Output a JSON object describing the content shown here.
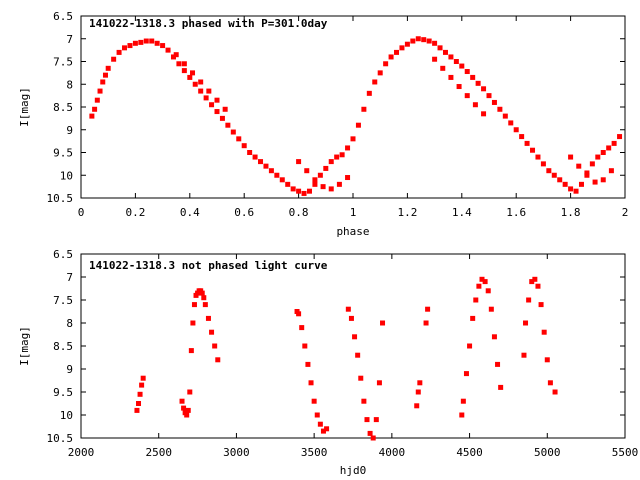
{
  "chart_data": [
    {
      "type": "scatter",
      "title": "141022-1318.3 phased with P=301.0day",
      "xlabel": "phase",
      "ylabel": "I[mag]",
      "xlim": [
        0,
        2
      ],
      "ylim": [
        6.5,
        10.5
      ],
      "y_inverted": true,
      "xticks": [
        "0",
        "0.2",
        "0.4",
        "0.6",
        "0.8",
        "1",
        "1.2",
        "1.4",
        "1.6",
        "1.8",
        "2"
      ],
      "yticks": [
        "6.5",
        "7",
        "7.5",
        "8",
        "8.5",
        "9",
        "9.5",
        "10",
        "10.5"
      ],
      "point_color": "#ff0000",
      "grid": false,
      "legend": "none",
      "x": [
        0.04,
        0.05,
        0.06,
        0.07,
        0.08,
        0.09,
        0.1,
        0.12,
        0.14,
        0.16,
        0.18,
        0.2,
        0.22,
        0.24,
        0.26,
        0.28,
        0.3,
        0.32,
        0.34,
        0.36,
        0.38,
        0.4,
        0.42,
        0.44,
        0.46,
        0.48,
        0.5,
        0.52,
        0.54,
        0.56,
        0.58,
        0.6,
        0.62,
        0.64,
        0.66,
        0.68,
        0.7,
        0.72,
        0.74,
        0.76,
        0.78,
        0.8,
        0.82,
        0.84,
        0.86,
        0.88,
        0.9,
        0.92,
        0.94,
        0.96,
        0.98,
        1.0,
        1.02,
        1.04,
        1.06,
        1.08,
        1.1,
        1.12,
        1.14,
        1.16,
        1.18,
        1.2,
        1.22,
        1.24,
        1.26,
        1.28,
        1.3,
        1.32,
        1.34,
        1.36,
        1.38,
        1.4,
        1.42,
        1.44,
        1.46,
        1.48,
        1.5,
        1.52,
        1.54,
        1.56,
        1.58,
        1.6,
        1.62,
        1.64,
        1.66,
        1.68,
        1.7,
        1.72,
        1.74,
        1.76,
        1.78,
        1.8,
        1.82,
        1.84,
        1.86,
        1.88,
        1.9,
        1.92,
        1.94,
        1.96,
        1.98,
        0.35,
        0.38,
        0.41,
        0.44,
        0.47,
        0.5,
        0.53,
        0.8,
        0.83,
        0.86,
        0.89,
        0.92,
        0.95,
        0.98,
        1.3,
        1.33,
        1.36,
        1.39,
        1.42,
        1.45,
        1.48,
        1.8,
        1.83,
        1.86,
        1.89,
        1.92,
        1.95
      ],
      "y": [
        8.7,
        8.55,
        8.35,
        8.15,
        7.95,
        7.8,
        7.65,
        7.45,
        7.3,
        7.2,
        7.15,
        7.1,
        7.08,
        7.05,
        7.05,
        7.1,
        7.15,
        7.25,
        7.4,
        7.55,
        7.7,
        7.85,
        8.0,
        8.15,
        8.3,
        8.45,
        8.6,
        8.75,
        8.9,
        9.05,
        9.2,
        9.35,
        9.5,
        9.6,
        9.7,
        9.8,
        9.9,
        10.0,
        10.1,
        10.2,
        10.3,
        10.35,
        10.4,
        10.35,
        10.2,
        10.0,
        9.85,
        9.7,
        9.6,
        9.55,
        9.4,
        9.2,
        8.9,
        8.55,
        8.2,
        7.95,
        7.75,
        7.55,
        7.4,
        7.3,
        7.2,
        7.12,
        7.05,
        7.0,
        7.02,
        7.05,
        7.1,
        7.2,
        7.3,
        7.4,
        7.5,
        7.6,
        7.72,
        7.85,
        7.98,
        8.1,
        8.25,
        8.4,
        8.55,
        8.7,
        8.85,
        9.0,
        9.15,
        9.3,
        9.45,
        9.6,
        9.75,
        9.9,
        10.0,
        10.1,
        10.2,
        10.3,
        10.35,
        10.2,
        9.95,
        9.75,
        9.6,
        9.5,
        9.4,
        9.3,
        9.15,
        7.35,
        7.55,
        7.75,
        7.95,
        8.15,
        8.35,
        8.55,
        9.7,
        9.9,
        10.1,
        10.25,
        10.3,
        10.2,
        10.05,
        7.45,
        7.65,
        7.85,
        8.05,
        8.25,
        8.45,
        8.65,
        9.6,
        9.8,
        10.0,
        10.15,
        10.1,
        9.9
      ]
    },
    {
      "type": "scatter",
      "title": "141022-1318.3 not phased light curve",
      "xlabel": "hjd0",
      "ylabel": "I[mag]",
      "xlim": [
        2000,
        5500
      ],
      "ylim": [
        6.5,
        10.5
      ],
      "y_inverted": true,
      "xticks": [
        "2000",
        "2500",
        "3000",
        "3500",
        "4000",
        "4500",
        "5000",
        "5500"
      ],
      "yticks": [
        "6.5",
        "7",
        "7.5",
        "8",
        "8.5",
        "9",
        "9.5",
        "10",
        "10.5"
      ],
      "point_color": "#ff0000",
      "grid": false,
      "legend": "none",
      "x": [
        2360,
        2370,
        2380,
        2390,
        2400,
        2650,
        2660,
        2670,
        2680,
        2690,
        2700,
        2710,
        2720,
        2730,
        2740,
        2750,
        2760,
        2770,
        2780,
        2790,
        2800,
        2820,
        2840,
        2860,
        2880,
        3390,
        3400,
        3420,
        3440,
        3460,
        3480,
        3500,
        3520,
        3540,
        3560,
        3580,
        3720,
        3740,
        3760,
        3780,
        3800,
        3820,
        3840,
        3860,
        3880,
        3900,
        3920,
        3940,
        4160,
        4170,
        4180,
        4220,
        4230,
        4450,
        4460,
        4480,
        4500,
        4520,
        4540,
        4560,
        4580,
        4600,
        4620,
        4640,
        4660,
        4680,
        4700,
        4850,
        4860,
        4880,
        4900,
        4920,
        4940,
        4960,
        4980,
        5000,
        5020,
        5050
      ],
      "y": [
        9.9,
        9.75,
        9.55,
        9.35,
        9.2,
        9.7,
        9.85,
        9.95,
        10.0,
        9.9,
        9.5,
        8.6,
        8.0,
        7.6,
        7.4,
        7.35,
        7.3,
        7.3,
        7.35,
        7.45,
        7.6,
        7.9,
        8.2,
        8.5,
        8.8,
        7.75,
        7.8,
        8.1,
        8.5,
        8.9,
        9.3,
        9.7,
        10.0,
        10.2,
        10.35,
        10.3,
        7.7,
        7.9,
        8.3,
        8.7,
        9.2,
        9.7,
        10.1,
        10.4,
        10.5,
        10.1,
        9.3,
        8.0,
        9.8,
        9.5,
        9.3,
        8.0,
        7.7,
        10.0,
        9.7,
        9.1,
        8.5,
        7.9,
        7.5,
        7.2,
        7.05,
        7.1,
        7.3,
        7.7,
        8.3,
        8.9,
        9.4,
        8.7,
        8.0,
        7.5,
        7.1,
        7.05,
        7.2,
        7.6,
        8.2,
        8.8,
        9.3,
        9.5
      ]
    }
  ]
}
